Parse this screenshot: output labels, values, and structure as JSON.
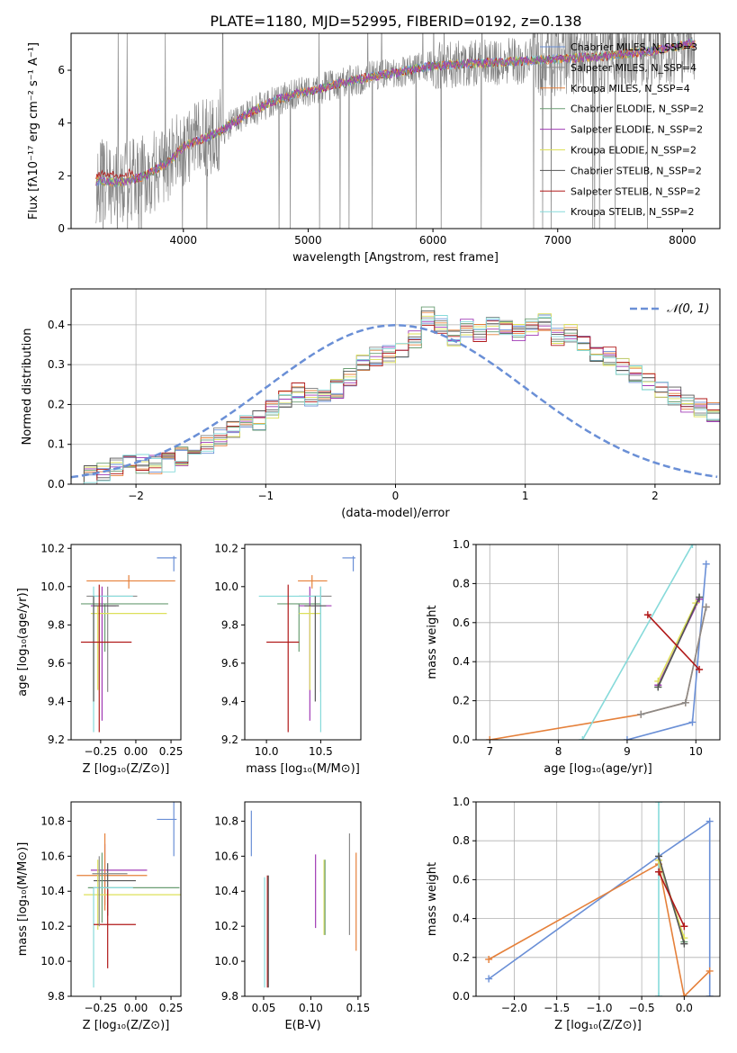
{
  "figure_title": "PLATE=1180, MJD=52995, FIBERID=0192, z=0.138",
  "colors": {
    "chabrier_miles": "#6a8fd6",
    "salpeter_miles": "#8a8a8a",
    "kroupa_miles": "#e5803a",
    "chabrier_elodie": "#6a9e73",
    "salpeter_elodie": "#a13bb5",
    "kroupa_elodie": "#dde05a",
    "chabrier_stelib": "#555555",
    "salpeter_stelib": "#b11a1a",
    "kroupa_stelib": "#86dada",
    "data": "#808080",
    "gauss": "#6a8fd6"
  },
  "chart_data": [
    {
      "id": "spectrum",
      "type": "line",
      "xlabel": "wavelength [Angstrom, rest frame]",
      "ylabel": "Flux [fλ10⁻¹⁷ erg cm⁻² s⁻¹ A⁻¹]",
      "xlim": [
        3100,
        8300
      ],
      "ylim": [
        0,
        7.4
      ],
      "xticks": [
        4000,
        5000,
        6000,
        7000,
        8000
      ],
      "yticks": [
        0,
        2,
        4,
        6
      ],
      "legend_position": "top-right",
      "continuum": {
        "x": [
          3300,
          3500,
          3700,
          3900,
          4000,
          4100,
          4300,
          4500,
          4700,
          4900,
          5100,
          5300,
          5500,
          5700,
          5900,
          6100,
          6300,
          6500,
          6700,
          6900,
          7100,
          7300,
          7500,
          7700,
          7900,
          8050
        ],
        "y": [
          1.8,
          1.75,
          2.0,
          2.6,
          3.1,
          3.3,
          3.7,
          4.3,
          4.8,
          5.1,
          5.3,
          5.55,
          5.75,
          5.9,
          6.1,
          6.2,
          6.25,
          6.3,
          6.35,
          6.4,
          6.45,
          6.5,
          6.6,
          6.7,
          6.85,
          7.0
        ]
      },
      "data_x_range": [
        3300,
        8100
      ],
      "series": [
        {
          "name": "Chabrier MILES, N_SSP=3",
          "key": "chabrier_miles"
        },
        {
          "name": "Salpeter MILES, N_SSP=4",
          "key": "salpeter_miles"
        },
        {
          "name": "Kroupa MILES, N_SSP=4",
          "key": "kroupa_miles"
        },
        {
          "name": "Chabrier ELODIE, N_SSP=2",
          "key": "chabrier_elodie"
        },
        {
          "name": "Salpeter ELODIE, N_SSP=2",
          "key": "salpeter_elodie"
        },
        {
          "name": "Kroupa ELODIE, N_SSP=2",
          "key": "kroupa_elodie"
        },
        {
          "name": "Chabrier STELIB, N_SSP=2",
          "key": "chabrier_stelib"
        },
        {
          "name": "Salpeter STELIB, N_SSP=2",
          "key": "salpeter_stelib"
        },
        {
          "name": "Kroupa STELIB, N_SSP=2",
          "key": "kroupa_stelib"
        }
      ]
    },
    {
      "id": "residuals",
      "type": "histogram",
      "xlabel": "(data-model)/error",
      "ylabel": "Normed distribution",
      "xlim": [
        -2.5,
        2.5
      ],
      "ylim": [
        0,
        0.49
      ],
      "xticks": [
        -2,
        -1,
        0,
        1,
        2
      ],
      "yticks": [
        0.0,
        0.1,
        0.2,
        0.3,
        0.4
      ],
      "grid": true,
      "legend_position": "top-right",
      "gauss_label": "𝒩(0, 1)",
      "bin_width": 0.1,
      "bin_start": -2.5,
      "base_heights": [
        0.02,
        0.025,
        0.03,
        0.045,
        0.05,
        0.05,
        0.05,
        0.055,
        0.07,
        0.09,
        0.1,
        0.12,
        0.14,
        0.15,
        0.16,
        0.19,
        0.21,
        0.23,
        0.22,
        0.23,
        0.24,
        0.27,
        0.3,
        0.32,
        0.33,
        0.34,
        0.36,
        0.42,
        0.4,
        0.37,
        0.39,
        0.38,
        0.4,
        0.4,
        0.38,
        0.39,
        0.41,
        0.37,
        0.38,
        0.35,
        0.33,
        0.32,
        0.3,
        0.28,
        0.26,
        0.24,
        0.22,
        0.2,
        0.19,
        0.18,
        0.17,
        0.16,
        0.14,
        0.12,
        0.1,
        0.09,
        0.08,
        0.065,
        0.06,
        0.05,
        0.04,
        0.035,
        0.03,
        0.025,
        0.025,
        0.02,
        0.02,
        0.02,
        0.02,
        0.02,
        0.02,
        0.02,
        0.02,
        0.02,
        0.02,
        0.02,
        0.02,
        0.02,
        0.02,
        0.02
      ]
    },
    {
      "id": "age_vs_Z",
      "type": "errorbar",
      "xlabel": "Z [log₁₀(Z/Z⊙)]",
      "ylabel": "age  [log₁₀(age/yr)]",
      "xlim": [
        -0.46,
        0.32
      ],
      "ylim": [
        9.2,
        10.22
      ],
      "xticks": [
        -0.25,
        0.0,
        0.25
      ],
      "xticklabels": [
        "−0.25",
        "0.00",
        "0.25"
      ],
      "yticks": [
        9.2,
        9.4,
        9.6,
        9.8,
        10.0,
        10.2
      ],
      "points": [
        {
          "key": "chabrier_miles",
          "x": 0.27,
          "y": 10.15,
          "xerr": [
            0.12,
            0.02
          ],
          "yerr": [
            0.07,
            0.01
          ]
        },
        {
          "key": "kroupa_miles",
          "x": -0.05,
          "y": 10.03,
          "xerr": [
            0.3,
            0.33
          ],
          "yerr": [
            0.04,
            0.03
          ]
        },
        {
          "key": "salpeter_miles",
          "x": -0.2,
          "y": 9.95,
          "xerr": [
            0.15,
            0.21
          ],
          "yerr": [
            0.5,
            0.05
          ]
        },
        {
          "key": "chabrier_elodie",
          "x": -0.22,
          "y": 9.91,
          "xerr": [
            0.17,
            0.45
          ],
          "yerr": [
            0.25,
            0.0
          ]
        },
        {
          "key": "salpeter_elodie",
          "x": -0.24,
          "y": 9.9,
          "xerr": [
            0.08,
            0.1
          ],
          "yerr": [
            0.6,
            0.1
          ]
        },
        {
          "key": "kroupa_elodie",
          "x": -0.27,
          "y": 9.86,
          "xerr": [
            0.05,
            0.49
          ],
          "yerr": [
            0.4,
            0.04
          ]
        },
        {
          "key": "kroupa_stelib",
          "x": -0.3,
          "y": 9.95,
          "xerr": [
            0.0,
            0.28
          ],
          "yerr": [
            0.71,
            0.05
          ]
        },
        {
          "key": "chabrier_stelib",
          "x": -0.3,
          "y": 9.9,
          "xerr": [
            0.0,
            0.18
          ],
          "yerr": [
            0.5,
            0.05
          ]
        },
        {
          "key": "salpeter_stelib",
          "x": -0.26,
          "y": 9.71,
          "xerr": [
            0.13,
            0.23
          ],
          "yerr": [
            0.47,
            0.3
          ]
        }
      ]
    },
    {
      "id": "age_vs_mass",
      "type": "errorbar",
      "xlabel": "mass [log₁₀(M/M⊙)]",
      "ylabel": "",
      "xlim": [
        9.8,
        10.87
      ],
      "ylim": [
        9.2,
        10.22
      ],
      "xticks": [
        10.0,
        10.5
      ],
      "xticklabels": [
        "10.0",
        "10.5"
      ],
      "yticks": [
        9.2,
        9.4,
        9.6,
        9.8,
        10.0,
        10.2
      ],
      "points": [
        {
          "key": "chabrier_miles",
          "x": 10.8,
          "y": 10.15,
          "xerr": [
            0.1,
            0.02
          ],
          "yerr": [
            0.07,
            0.01
          ]
        },
        {
          "key": "kroupa_miles",
          "x": 10.42,
          "y": 10.03,
          "xerr": [
            0.13,
            0.14
          ],
          "yerr": [
            0.04,
            0.03
          ]
        },
        {
          "key": "salpeter_miles",
          "x": 10.5,
          "y": 9.95,
          "xerr": [
            0.2,
            0.1
          ],
          "yerr": [
            0.5,
            0.05
          ]
        },
        {
          "key": "chabrier_elodie",
          "x": 10.3,
          "y": 9.91,
          "xerr": [
            0.2,
            0.2
          ],
          "yerr": [
            0.25,
            0.0
          ]
        },
        {
          "key": "salpeter_elodie",
          "x": 10.4,
          "y": 9.9,
          "xerr": [
            0.1,
            0.2
          ],
          "yerr": [
            0.6,
            0.1
          ]
        },
        {
          "key": "kroupa_elodie",
          "x": 10.4,
          "y": 9.86,
          "xerr": [
            0.1,
            0.1
          ],
          "yerr": [
            0.4,
            0.04
          ]
        },
        {
          "key": "kroupa_stelib",
          "x": 10.5,
          "y": 9.95,
          "xerr": [
            0.57,
            0.0
          ],
          "yerr": [
            0.71,
            0.05
          ]
        },
        {
          "key": "chabrier_stelib",
          "x": 10.45,
          "y": 9.9,
          "xerr": [
            0.1,
            0.1
          ],
          "yerr": [
            0.5,
            0.05
          ]
        },
        {
          "key": "salpeter_stelib",
          "x": 10.2,
          "y": 9.71,
          "xerr": [
            0.2,
            0.1
          ],
          "yerr": [
            0.47,
            0.3
          ]
        }
      ]
    },
    {
      "id": "massweight_vs_age",
      "type": "line",
      "xlabel": "age  [log₁₀(age/yr)]",
      "ylabel": "mass weight",
      "xlim": [
        6.8,
        10.35
      ],
      "ylim": [
        0.0,
        1.0
      ],
      "xticks": [
        7,
        8,
        9,
        10
      ],
      "yticks": [
        0.0,
        0.2,
        0.4,
        0.6,
        0.8,
        1.0
      ],
      "grid": true,
      "series": [
        {
          "key": "chabrier_miles",
          "x": [
            9.0,
            9.95,
            10.15
          ],
          "y": [
            0.0,
            0.09,
            0.9
          ]
        },
        {
          "key": "kroupa_miles",
          "x": [
            7.0,
            9.2,
            9.85,
            10.15
          ],
          "y": [
            0.0,
            0.13,
            0.19,
            0.68
          ]
        },
        {
          "key": "salpeter_miles",
          "x": [
            9.2,
            9.85,
            10.15
          ],
          "y": [
            0.13,
            0.19,
            0.68
          ]
        },
        {
          "key": "kroupa_stelib",
          "x": [
            8.35,
            9.95
          ],
          "y": [
            0.0,
            1.0
          ]
        },
        {
          "key": "chabrier_elodie",
          "x": [
            9.45,
            10.05
          ],
          "y": [
            0.27,
            0.73
          ]
        },
        {
          "key": "salpeter_elodie",
          "x": [
            9.45,
            10.05
          ],
          "y": [
            0.28,
            0.72
          ]
        },
        {
          "key": "kroupa_elodie",
          "x": [
            9.45,
            10.0
          ],
          "y": [
            0.3,
            0.7
          ]
        },
        {
          "key": "chabrier_stelib",
          "x": [
            9.45,
            10.05
          ],
          "y": [
            0.27,
            0.73
          ]
        },
        {
          "key": "salpeter_stelib",
          "x": [
            9.3,
            10.05
          ],
          "y": [
            0.64,
            0.36
          ]
        }
      ]
    },
    {
      "id": "mass_vs_Z",
      "type": "errorbar",
      "xlabel": "Z [log₁₀(Z/Z⊙)]",
      "ylabel": "mass [log₁₀(M/M⊙)]",
      "xlim": [
        -0.46,
        0.32
      ],
      "ylim": [
        9.8,
        10.91
      ],
      "xticks": [
        -0.25,
        0.0,
        0.25
      ],
      "xticklabels": [
        "−0.25",
        "0.00",
        "0.25"
      ],
      "yticks": [
        9.8,
        10.0,
        10.2,
        10.4,
        10.6,
        10.8
      ],
      "points": [
        {
          "key": "chabrier_miles",
          "x": 0.27,
          "y": 10.81,
          "xerr": [
            0.12,
            0.02
          ],
          "yerr": [
            0.21,
            0.1
          ]
        },
        {
          "key": "salpeter_elodie",
          "x": -0.22,
          "y": 10.52,
          "xerr": [
            0.1,
            0.3
          ],
          "yerr": [
            0.2,
            0.15
          ]
        },
        {
          "key": "kroupa_miles",
          "x": -0.22,
          "y": 10.49,
          "xerr": [
            0.2,
            0.3
          ],
          "yerr": [
            0.2,
            0.24
          ]
        },
        {
          "key": "chabrier_stelib",
          "x": -0.2,
          "y": 10.46,
          "xerr": [
            0.1,
            0.2
          ],
          "yerr": [
            0.2,
            0.1
          ]
        },
        {
          "key": "chabrier_elodie",
          "x": -0.24,
          "y": 10.42,
          "xerr": [
            0.1,
            0.55
          ],
          "yerr": [
            0.2,
            0.2
          ]
        },
        {
          "key": "kroupa_elodie",
          "x": -0.27,
          "y": 10.38,
          "xerr": [
            0.1,
            0.6
          ],
          "yerr": [
            0.2,
            0.2
          ]
        },
        {
          "key": "kroupa_stelib",
          "x": -0.3,
          "y": 10.42,
          "xerr": [
            0.0,
            0.28
          ],
          "yerr": [
            0.57,
            0.0
          ]
        },
        {
          "key": "salpeter_stelib",
          "x": -0.2,
          "y": 10.21,
          "xerr": [
            0.1,
            0.2
          ],
          "yerr": [
            0.25,
            0.2
          ]
        },
        {
          "key": "salpeter_miles",
          "x": -0.26,
          "y": 10.5,
          "xerr": [
            0.05,
            0.2
          ],
          "yerr": [
            0.3,
            0.1
          ]
        }
      ]
    },
    {
      "id": "mass_vs_ebv",
      "type": "errorbar",
      "xlabel": "E(B-V)",
      "ylabel": "",
      "xlim": [
        0.03,
        0.153
      ],
      "ylim": [
        9.8,
        10.91
      ],
      "xticks": [
        0.05,
        0.1,
        0.15
      ],
      "xticklabels": [
        "0.05",
        "0.10",
        "0.15"
      ],
      "yticks": [
        9.8,
        10.0,
        10.2,
        10.4,
        10.6,
        10.8
      ],
      "points": [
        {
          "key": "chabrier_miles",
          "x": 0.037,
          "y": 10.73,
          "xerr": [
            0.0,
            0.0
          ],
          "yerr": [
            0.13,
            0.13
          ]
        },
        {
          "key": "kroupa_stelib",
          "x": 0.051,
          "y": 10.18,
          "xerr": [
            0.0,
            0.0
          ],
          "yerr": [
            0.33,
            0.3
          ]
        },
        {
          "key": "salpeter_stelib",
          "x": 0.054,
          "y": 10.2,
          "xerr": [
            0.0,
            0.0
          ],
          "yerr": [
            0.35,
            0.29
          ]
        },
        {
          "key": "chabrier_stelib",
          "x": 0.055,
          "y": 10.2,
          "xerr": [
            0.0,
            0.0
          ],
          "yerr": [
            0.35,
            0.29
          ]
        },
        {
          "key": "salpeter_elodie",
          "x": 0.105,
          "y": 10.4,
          "xerr": [
            0.0,
            0.0
          ],
          "yerr": [
            0.21,
            0.21
          ]
        },
        {
          "key": "kroupa_elodie",
          "x": 0.114,
          "y": 10.37,
          "xerr": [
            0.0,
            0.0
          ],
          "yerr": [
            0.22,
            0.21
          ]
        },
        {
          "key": "chabrier_elodie",
          "x": 0.115,
          "y": 10.37,
          "xerr": [
            0.0,
            0.0
          ],
          "yerr": [
            0.22,
            0.21
          ]
        },
        {
          "key": "salpeter_miles",
          "x": 0.141,
          "y": 10.5,
          "xerr": [
            0.0,
            0.0
          ],
          "yerr": [
            0.35,
            0.23
          ]
        },
        {
          "key": "kroupa_miles",
          "x": 0.148,
          "y": 10.34,
          "xerr": [
            0.0,
            0.0
          ],
          "yerr": [
            0.28,
            0.28
          ]
        }
      ]
    },
    {
      "id": "massweight_vs_Z",
      "type": "line",
      "xlabel": "Z [log₁₀(Z/Z⊙)]",
      "ylabel": "mass weight",
      "xlim": [
        -2.45,
        0.42
      ],
      "ylim": [
        0.0,
        1.0
      ],
      "xticks": [
        -2.0,
        -1.5,
        -1.0,
        -0.5,
        0.0
      ],
      "xticklabels": [
        "−2.0",
        "−1.5",
        "−1.0",
        "−0.5",
        "0.0"
      ],
      "yticks": [
        0.0,
        0.2,
        0.4,
        0.6,
        0.8,
        1.0
      ],
      "grid": true,
      "series": [
        {
          "key": "chabrier_miles",
          "x": [
            -2.3,
            -0.3,
            0.3,
            0.3
          ],
          "y": [
            0.09,
            0.72,
            0.9,
            0.0
          ]
        },
        {
          "key": "kroupa_miles",
          "x": [
            -2.3,
            -0.3,
            0.0,
            0.3
          ],
          "y": [
            0.19,
            0.68,
            0.0,
            0.13
          ]
        },
        {
          "key": "kroupa_stelib",
          "x": [
            -0.3,
            -0.3
          ],
          "y": [
            0.0,
            1.0
          ]
        },
        {
          "key": "chabrier_elodie",
          "x": [
            -0.3,
            0.0
          ],
          "y": [
            0.7,
            0.28
          ]
        },
        {
          "key": "kroupa_elodie",
          "x": [
            -0.3,
            0.0
          ],
          "y": [
            0.7,
            0.3
          ]
        },
        {
          "key": "chabrier_stelib",
          "x": [
            -0.3,
            0.0
          ],
          "y": [
            0.72,
            0.27
          ]
        },
        {
          "key": "salpeter_stelib",
          "x": [
            -0.3,
            0.0
          ],
          "y": [
            0.64,
            0.36
          ]
        }
      ]
    }
  ]
}
